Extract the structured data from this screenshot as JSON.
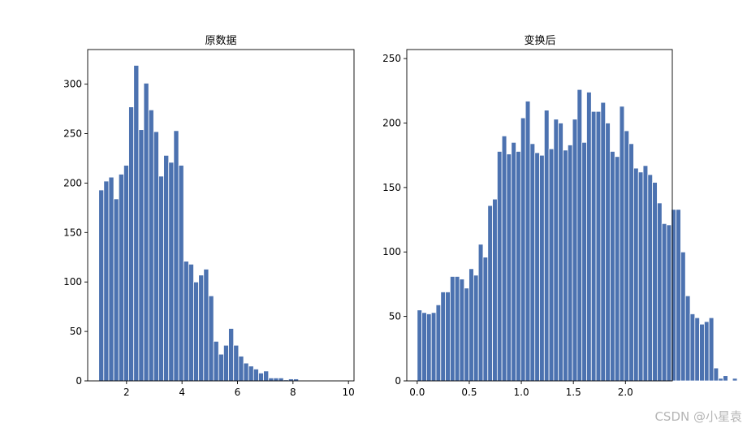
{
  "chart_data": [
    {
      "type": "bar",
      "title": "原数据",
      "bar_color": "#4c72b0",
      "xlim": [
        0.6,
        10.2
      ],
      "ylim": [
        0,
        335
      ],
      "xticks": [
        2,
        4,
        6,
        8,
        10
      ],
      "xtick_labels": [
        "2",
        "4",
        "6",
        "8",
        "10"
      ],
      "yticks": [
        0,
        50,
        100,
        150,
        200,
        250,
        300
      ],
      "ytick_labels": [
        "0",
        "50",
        "100",
        "150",
        "200",
        "250",
        "300"
      ],
      "bin_start": 1.0,
      "bin_width": 0.18,
      "values": [
        193,
        202,
        206,
        184,
        209,
        218,
        277,
        319,
        254,
        301,
        274,
        252,
        207,
        228,
        221,
        253,
        218,
        121,
        118,
        100,
        107,
        113,
        86,
        40,
        27,
        36,
        53,
        36,
        25,
        18,
        15,
        12,
        8,
        10,
        3,
        3,
        3,
        1,
        2,
        2,
        0,
        0,
        0,
        0,
        0,
        0,
        0,
        0,
        0,
        0
      ]
    },
    {
      "type": "bar",
      "title": "变换后",
      "bar_color": "#4c72b0",
      "xlim": [
        -0.1,
        2.45
      ],
      "ylim": [
        0,
        257
      ],
      "xticks": [
        0.0,
        0.5,
        1.0,
        1.5,
        2.0
      ],
      "xtick_labels": [
        "0.0",
        "0.5",
        "1.0",
        "1.5",
        "2.0"
      ],
      "yticks": [
        0,
        50,
        100,
        150,
        200,
        250
      ],
      "ytick_labels": [
        "0",
        "50",
        "100",
        "150",
        "200",
        "250"
      ],
      "bin_start": 0.0,
      "bin_width": 0.0452,
      "values": [
        55,
        53,
        52,
        53,
        59,
        69,
        69,
        81,
        81,
        79,
        72,
        87,
        82,
        106,
        96,
        136,
        141,
        178,
        190,
        176,
        185,
        178,
        204,
        217,
        184,
        177,
        175,
        210,
        180,
        203,
        200,
        179,
        183,
        203,
        226,
        185,
        224,
        209,
        209,
        216,
        200,
        178,
        174,
        213,
        194,
        184,
        165,
        162,
        167,
        160,
        154,
        138,
        122,
        121,
        133,
        133,
        100,
        66,
        52,
        49,
        44,
        46,
        49,
        10,
        2,
        4,
        0,
        2,
        0,
        0
      ]
    }
  ],
  "watermark": "CSDN @小星袁"
}
